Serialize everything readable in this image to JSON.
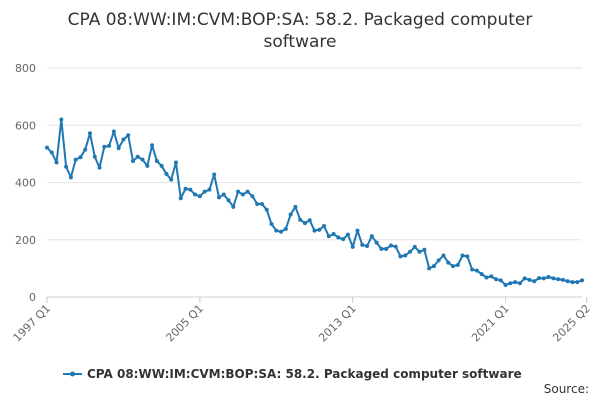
{
  "chart_data": {
    "type": "line",
    "title_line1": "CPA 08:WW:IM:CVM:BOP:SA: 58.2. Packaged computer",
    "title_line2": "software",
    "xlabel": "",
    "ylabel": "",
    "ylim": [
      0,
      800
    ],
    "yticks": [
      "0",
      "200",
      "400",
      "600",
      "800"
    ],
    "xticks": [
      "1997 Q1",
      "2005 Q1",
      "2013 Q1",
      "2021 Q1",
      "2025 Q2"
    ],
    "grid": true,
    "legend_position": "bottom-center",
    "color": "#1f77b4",
    "series": [
      {
        "name": "CPA 08:WW:IM:CVM:BOP:SA: 58.2. Packaged computer software",
        "start_quarter": "1997 Q1",
        "values": [
          522,
          505,
          470,
          620,
          455,
          418,
          480,
          488,
          515,
          572,
          490,
          452,
          525,
          528,
          578,
          520,
          550,
          565,
          475,
          490,
          480,
          458,
          530,
          475,
          458,
          430,
          410,
          470,
          345,
          378,
          375,
          358,
          352,
          368,
          375,
          428,
          348,
          358,
          338,
          315,
          368,
          358,
          368,
          352,
          325,
          325,
          305,
          255,
          232,
          228,
          238,
          288,
          315,
          270,
          258,
          268,
          232,
          235,
          248,
          212,
          220,
          208,
          202,
          218,
          175,
          232,
          182,
          178,
          212,
          190,
          168,
          168,
          180,
          176,
          142,
          145,
          158,
          175,
          158,
          165,
          100,
          108,
          128,
          145,
          120,
          108,
          112,
          145,
          142,
          96,
          92,
          80,
          68,
          72,
          62,
          58,
          42,
          48,
          52,
          48,
          65,
          60,
          55,
          66,
          65,
          70,
          65,
          62,
          60,
          55,
          52,
          52,
          58
        ]
      }
    ]
  },
  "legend": {
    "label": "CPA 08:WW:IM:CVM:BOP:SA: 58.2. Packaged computer software"
  },
  "footer": {
    "source_label": "Source:"
  }
}
